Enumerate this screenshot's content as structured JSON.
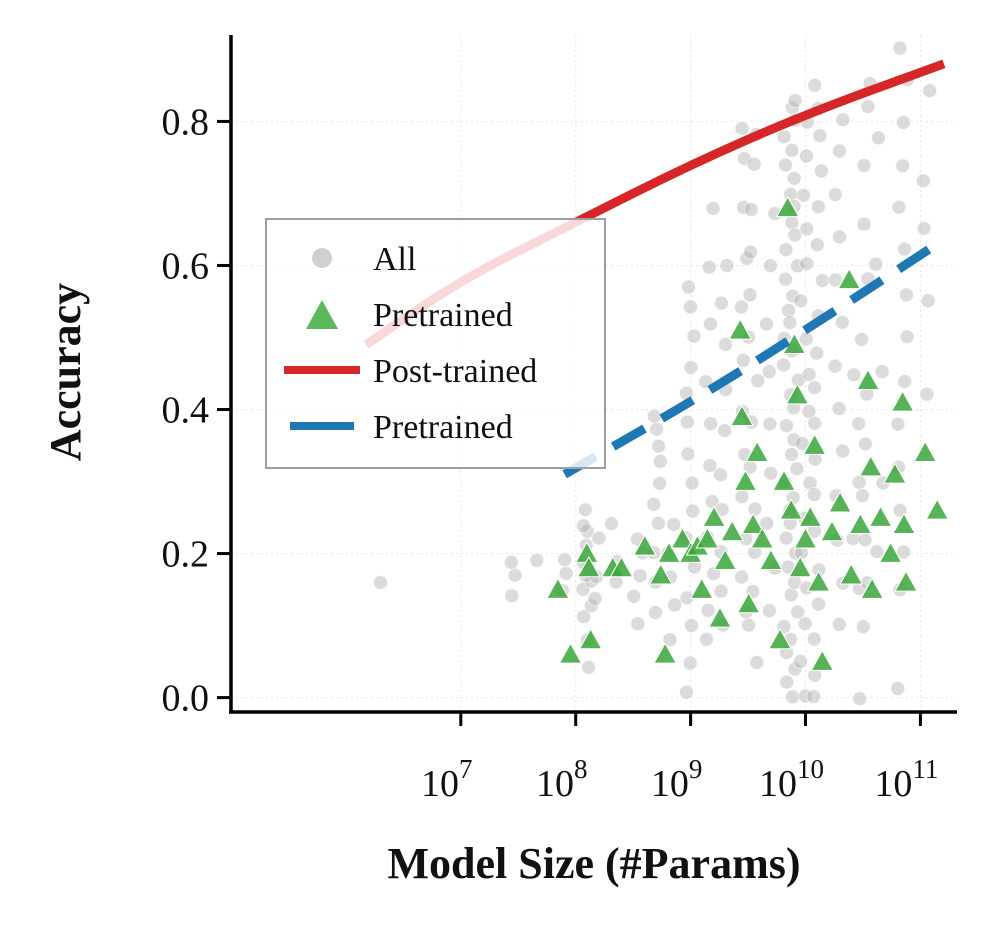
{
  "chart_data": {
    "type": "scatter",
    "xlabel": "Model Size (#Params)",
    "ylabel": "Accuracy",
    "xscale": "log",
    "xlim": [
      100000,
      200000000000
    ],
    "ylim": [
      -0.02,
      0.92
    ],
    "x_ticks": [
      {
        "value": 10000000,
        "base": "10",
        "exp": "7"
      },
      {
        "value": 100000000,
        "base": "10",
        "exp": "8"
      },
      {
        "value": 1000000000,
        "base": "10",
        "exp": "9"
      },
      {
        "value": 10000000000,
        "base": "10",
        "exp": "10"
      },
      {
        "value": 100000000000,
        "base": "10",
        "exp": "11"
      }
    ],
    "y_ticks": [
      {
        "value": 0.0,
        "label": "0.0"
      },
      {
        "value": 0.2,
        "label": "0.2"
      },
      {
        "value": 0.4,
        "label": "0.4"
      },
      {
        "value": 0.6,
        "label": "0.6"
      },
      {
        "value": 0.8,
        "label": "0.8"
      }
    ],
    "grid": true,
    "legend": {
      "location": "center-left",
      "entries": [
        {
          "label": "All",
          "marker": "circle",
          "color": "#bdbdbd"
        },
        {
          "label": "Pretrained",
          "marker": "triangle",
          "color": "#4daf4a"
        },
        {
          "label": "Post-trained",
          "marker": "solid-line",
          "color": "#d62728"
        },
        {
          "label": "Pretrained",
          "marker": "dashed-line",
          "color": "#1f77b4"
        }
      ]
    },
    "series": [
      {
        "name": "All",
        "kind": "scatter",
        "marker": "circle",
        "color": "#b0b0b0",
        "note": "dense cloud of evaluation points; representative sample",
        "clusters": [
          {
            "x": 2000000,
            "y": [
              0.16
            ]
          },
          {
            "x": 30000000,
            "y": [
              0.14,
              0.17,
              0.19
            ]
          },
          {
            "x": 45000000,
            "y": [
              0.19
            ]
          },
          {
            "x": 80000000,
            "y": [
              0.15,
              0.17,
              0.19
            ]
          },
          {
            "x": 125000000,
            "y": [
              0.04,
              0.08,
              0.11,
              0.13,
              0.15,
              0.16,
              0.17,
              0.18,
              0.19,
              0.21,
              0.23,
              0.24,
              0.26
            ]
          },
          {
            "x": 160000000,
            "y": [
              0.14,
              0.17,
              0.22
            ]
          },
          {
            "x": 220000000,
            "y": [
              0.16,
              0.19,
              0.24
            ]
          },
          {
            "x": 350000000,
            "y": [
              0.1,
              0.14,
              0.17,
              0.2,
              0.22
            ]
          },
          {
            "x": 500000000,
            "y": [
              0.12,
              0.16,
              0.2,
              0.24,
              0.27,
              0.3,
              0.33,
              0.35,
              0.37,
              0.39
            ]
          },
          {
            "x": 700000000,
            "y": [
              0.08,
              0.13,
              0.17,
              0.2,
              0.24
            ]
          },
          {
            "x": 1000000000,
            "y": [
              0.01,
              0.05,
              0.1,
              0.14,
              0.18,
              0.22,
              0.26,
              0.3,
              0.34,
              0.38,
              0.42,
              0.46,
              0.5,
              0.54,
              0.57
            ]
          },
          {
            "x": 1500000000,
            "y": [
              0.08,
              0.12,
              0.17,
              0.22,
              0.27,
              0.32,
              0.38,
              0.44,
              0.52,
              0.6,
              0.68
            ]
          },
          {
            "x": 2000000000,
            "y": [
              0.1,
              0.15,
              0.2,
              0.26,
              0.31,
              0.37,
              0.43,
              0.49,
              0.55,
              0.6
            ]
          },
          {
            "x": 2800000000,
            "y": [
              0.12,
              0.17,
              0.22,
              0.28,
              0.34,
              0.4,
              0.47,
              0.54,
              0.61,
              0.68,
              0.75,
              0.79
            ]
          },
          {
            "x": 3500000000,
            "y": [
              0.05,
              0.1,
              0.15,
              0.2,
              0.26,
              0.32,
              0.38,
              0.44,
              0.5,
              0.56,
              0.62,
              0.68,
              0.74,
              0.78
            ]
          },
          {
            "x": 5000000000,
            "y": [
              0.12,
              0.18,
              0.24,
              0.31,
              0.38,
              0.45,
              0.52,
              0.6,
              0.67
            ]
          },
          {
            "x": 7000000000,
            "y": [
              0.02,
              0.06,
              0.1,
              0.14,
              0.18,
              0.22,
              0.26,
              0.3,
              0.34,
              0.38,
              0.42,
              0.46,
              0.5,
              0.54,
              0.58,
              0.62,
              0.66,
              0.7,
              0.74,
              0.78,
              0.82
            ]
          },
          {
            "x": 8000000000,
            "y": [
              0.0,
              0.04,
              0.08,
              0.12,
              0.16,
              0.2,
              0.24,
              0.28,
              0.32,
              0.36,
              0.4,
              0.44,
              0.48,
              0.52,
              0.56,
              0.6,
              0.64,
              0.68,
              0.72,
              0.76,
              0.8,
              0.83
            ]
          },
          {
            "x": 10000000000,
            "y": [
              0.0,
              0.05,
              0.1,
              0.15,
              0.2,
              0.25,
              0.3,
              0.35,
              0.4,
              0.45,
              0.5,
              0.55,
              0.6,
              0.65,
              0.7,
              0.75,
              0.8
            ]
          },
          {
            "x": 13000000000,
            "y": [
              0.0,
              0.03,
              0.08,
              0.13,
              0.18,
              0.23,
              0.28,
              0.33,
              0.38,
              0.43,
              0.48,
              0.53,
              0.58,
              0.63,
              0.68,
              0.73,
              0.78,
              0.82,
              0.85
            ]
          },
          {
            "x": 20000000000,
            "y": [
              0.1,
              0.16,
              0.22,
              0.28,
              0.34,
              0.4,
              0.46,
              0.52,
              0.58,
              0.64,
              0.7,
              0.76,
              0.8
            ]
          },
          {
            "x": 27000000000,
            "y": [
              0.0,
              0.15,
              0.22,
              0.3,
              0.38,
              0.45
            ]
          },
          {
            "x": 34000000000,
            "y": [
              0.1,
              0.16,
              0.22,
              0.28,
              0.35,
              0.42,
              0.5,
              0.58,
              0.66,
              0.74,
              0.82,
              0.85
            ]
          },
          {
            "x": 45000000000,
            "y": [
              0.2,
              0.3,
              0.45,
              0.6,
              0.78
            ]
          },
          {
            "x": 70000000000,
            "y": [
              0.01,
              0.15,
              0.2,
              0.26,
              0.32,
              0.38,
              0.44,
              0.5,
              0.56,
              0.62,
              0.68,
              0.74,
              0.8,
              0.86,
              0.9
            ]
          },
          {
            "x": 110000000000,
            "y": [
              0.42,
              0.55,
              0.65,
              0.72,
              0.84
            ]
          }
        ]
      },
      {
        "name": "Pretrained",
        "kind": "scatter",
        "marker": "triangle",
        "color": "#4daf4a",
        "points": [
          [
            70000000,
            0.15
          ],
          [
            90000000,
            0.06
          ],
          [
            125000000,
            0.2
          ],
          [
            130000000,
            0.18
          ],
          [
            135000000,
            0.08
          ],
          [
            210000000,
            0.18
          ],
          [
            250000000,
            0.18
          ],
          [
            400000000,
            0.21
          ],
          [
            550000000,
            0.17
          ],
          [
            600000000,
            0.06
          ],
          [
            650000000,
            0.2
          ],
          [
            850000000,
            0.22
          ],
          [
            1000000000,
            0.2
          ],
          [
            1150000000,
            0.21
          ],
          [
            1250000000,
            0.15
          ],
          [
            1400000000,
            0.22
          ],
          [
            1600000000,
            0.25
          ],
          [
            1800000000,
            0.11
          ],
          [
            2000000000,
            0.19
          ],
          [
            2300000000,
            0.23
          ],
          [
            2700000000,
            0.51
          ],
          [
            2800000000,
            0.39
          ],
          [
            3000000000,
            0.3
          ],
          [
            3200000000,
            0.13
          ],
          [
            3500000000,
            0.24
          ],
          [
            3800000000,
            0.34
          ],
          [
            4200000000,
            0.22
          ],
          [
            5000000000,
            0.19
          ],
          [
            6000000000,
            0.08
          ],
          [
            6500000000,
            0.3
          ],
          [
            7000000000,
            0.68
          ],
          [
            7500000000,
            0.26
          ],
          [
            8000000000,
            0.49
          ],
          [
            8500000000,
            0.42
          ],
          [
            9000000000,
            0.18
          ],
          [
            10000000000,
            0.22
          ],
          [
            11000000000,
            0.25
          ],
          [
            12000000000,
            0.35
          ],
          [
            13000000000,
            0.16
          ],
          [
            14000000000,
            0.05
          ],
          [
            17000000000,
            0.23
          ],
          [
            20000000000,
            0.27
          ],
          [
            24000000000,
            0.58
          ],
          [
            25000000000,
            0.17
          ],
          [
            30000000000,
            0.24
          ],
          [
            35000000000,
            0.44
          ],
          [
            37000000000,
            0.32
          ],
          [
            38000000000,
            0.15
          ],
          [
            45000000000,
            0.25
          ],
          [
            55000000000,
            0.2
          ],
          [
            60000000000,
            0.31
          ],
          [
            70000000000,
            0.41
          ],
          [
            72000000000,
            0.24
          ],
          [
            75000000000,
            0.16
          ],
          [
            110000000000,
            0.34
          ],
          [
            140000000000,
            0.26
          ]
        ]
      },
      {
        "name": "Post-trained",
        "kind": "line",
        "style": "solid",
        "color": "#d62728",
        "x": [
          1500000,
          10000000,
          100000000,
          1000000000,
          10000000000,
          160000000000
        ],
        "y": [
          0.49,
          0.58,
          0.66,
          0.74,
          0.81,
          0.88
        ]
      },
      {
        "name": "Pretrained",
        "kind": "line",
        "style": "dashed",
        "color": "#1f77b4",
        "x": [
          80000000,
          1000000000,
          10000000000,
          140000000000
        ],
        "y": [
          0.31,
          0.41,
          0.51,
          0.63
        ]
      }
    ]
  }
}
